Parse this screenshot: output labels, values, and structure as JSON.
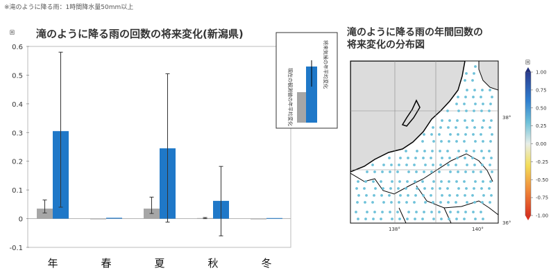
{
  "note": "※滝のように降る雨：1時間降水量50mm以上",
  "chart_data": [
    {
      "type": "bar",
      "title": "滝のように降る雨の回数の将来変化(新潟県)",
      "ylabel": "回",
      "ylim": [
        -0.1,
        0.6
      ],
      "yticks": [
        "0.6",
        "0.5",
        "0.4",
        "0.3",
        "0.2",
        "0.1",
        "0",
        "-0.1"
      ],
      "categories": [
        "年",
        "春",
        "夏",
        "秋",
        "冬"
      ],
      "series": [
        {
          "name": "現在の観測値の年平均変化",
          "color": "#a6a6a6",
          "values": [
            0.035,
            0,
            0.035,
            0.002,
            0
          ],
          "err_low": [
            0.02,
            0,
            0.018,
            0.0,
            0
          ],
          "err_high": [
            0.065,
            0,
            0.075,
            0.004,
            0
          ]
        },
        {
          "name": "将来気候の年平均変化",
          "color": "#1f78c8",
          "values": [
            0.305,
            0.003,
            0.245,
            0.062,
            0.002
          ],
          "err_low": [
            0.04,
            0,
            -0.012,
            -0.06,
            0
          ],
          "err_high": [
            0.58,
            0,
            0.505,
            0.182,
            0
          ]
        }
      ],
      "legend": {
        "placement": "top-right",
        "item1": "現在の観測値の年平均変化",
        "item2": "将来気候の年平均変化"
      }
    },
    {
      "type": "heatmap",
      "title": [
        "滝のように降る雨の年間回数の",
        "将来変化の分布図"
      ],
      "colorbar_unit": "回",
      "colorbar_ticks": [
        "1.00",
        "0.75",
        "0.50",
        "0.25",
        "0.00",
        "-0.25",
        "-0.50",
        "-0.75",
        "-1.00"
      ],
      "x_ticks": [
        "138°",
        "140°"
      ],
      "y_ticks": [
        "38°",
        "36°"
      ],
      "point_value": 0.35,
      "point_color": "#6ec1d9"
    }
  ]
}
